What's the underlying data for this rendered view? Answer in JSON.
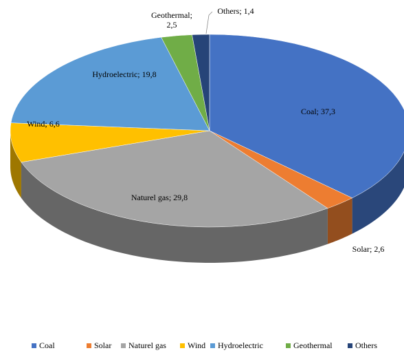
{
  "chart_data": {
    "type": "pie3d",
    "categories": [
      "Coal",
      "Solar",
      "Naturel gas",
      "Wind",
      "Hydroelectric",
      "Geothermal",
      "Others"
    ],
    "values": [
      37.3,
      2.6,
      29.8,
      6.6,
      19.8,
      2.5,
      1.4
    ],
    "value_labels": [
      "Coal; 37,3",
      "Solar; 2,6",
      "Naturel gas; 29,8",
      "Wind; 6,6",
      "Hydroelectric; 19,8",
      "Geothermal; 2,5",
      "Others; 1,4"
    ],
    "colors": [
      "#4472c4",
      "#ed7d31",
      "#a5a5a5",
      "#ffc000",
      "#5b9bd5",
      "#70ad47",
      "#264478"
    ],
    "legend": "bottom"
  }
}
